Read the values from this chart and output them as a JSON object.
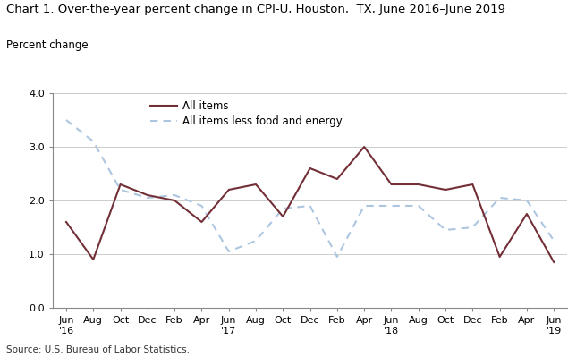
{
  "title": "Chart 1. Over-the-year percent change in CPI-U, Houston,  TX, June 2016–June 2019",
  "ylabel": "Percent change",
  "source": "Source: U.S. Bureau of Labor Statistics.",
  "ylim": [
    0.0,
    4.0
  ],
  "yticks": [
    0.0,
    1.0,
    2.0,
    3.0,
    4.0
  ],
  "x_labels": [
    "Jun\n'16",
    "Aug",
    "Oct",
    "Dec",
    "Feb",
    "Apr",
    "Jun\n'17",
    "Aug",
    "Oct",
    "Dec",
    "Feb",
    "Apr",
    "Jun\n'18",
    "Aug",
    "Oct",
    "Dec",
    "Feb",
    "Apr",
    "Jun\n'19"
  ],
  "all_items": [
    1.6,
    0.9,
    2.3,
    2.1,
    2.0,
    1.6,
    2.2,
    2.3,
    1.7,
    2.6,
    2.4,
    3.0,
    2.3,
    2.3,
    2.2,
    2.3,
    0.95,
    1.75,
    0.85
  ],
  "less_food_energy": [
    3.5,
    3.1,
    2.2,
    2.05,
    2.1,
    1.9,
    1.05,
    1.25,
    1.85,
    1.9,
    0.95,
    1.9,
    1.9,
    1.9,
    1.45,
    1.5,
    2.05,
    2.0,
    1.25
  ],
  "all_items_color": "#722F37",
  "less_food_energy_color": "#adc6e0",
  "all_items_label": "All items",
  "less_food_energy_label": "All items less food and energy",
  "grid_color": "#cccccc",
  "title_fontsize": 9.5,
  "label_fontsize": 8.5,
  "tick_fontsize": 8.0,
  "legend_fontsize": 8.5
}
